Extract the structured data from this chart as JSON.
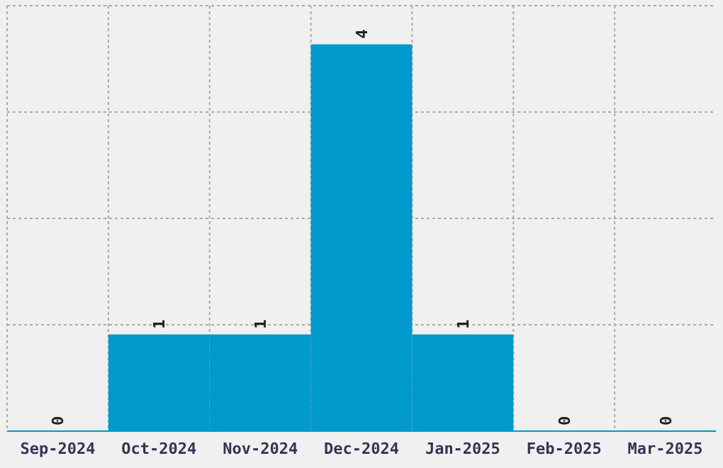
{
  "chart_data": {
    "type": "bar",
    "categories": [
      "Sep-2024",
      "Oct-2024",
      "Nov-2024",
      "Dec-2024",
      "Jan-2025",
      "Feb-2025",
      "Mar-2025"
    ],
    "values": [
      0,
      1,
      1,
      4,
      1,
      0,
      0
    ],
    "color": "#0099cc",
    "data_labels": true,
    "grid": true,
    "tick_labels": "x",
    "ylim": [
      0,
      4.4
    ],
    "yticks": [
      {
        "value": 1.1,
        "label": null
      },
      {
        "value": 2.2,
        "label": null
      },
      {
        "value": 3.3,
        "label": null
      },
      {
        "value": 4.4,
        "label": null
      }
    ]
  }
}
